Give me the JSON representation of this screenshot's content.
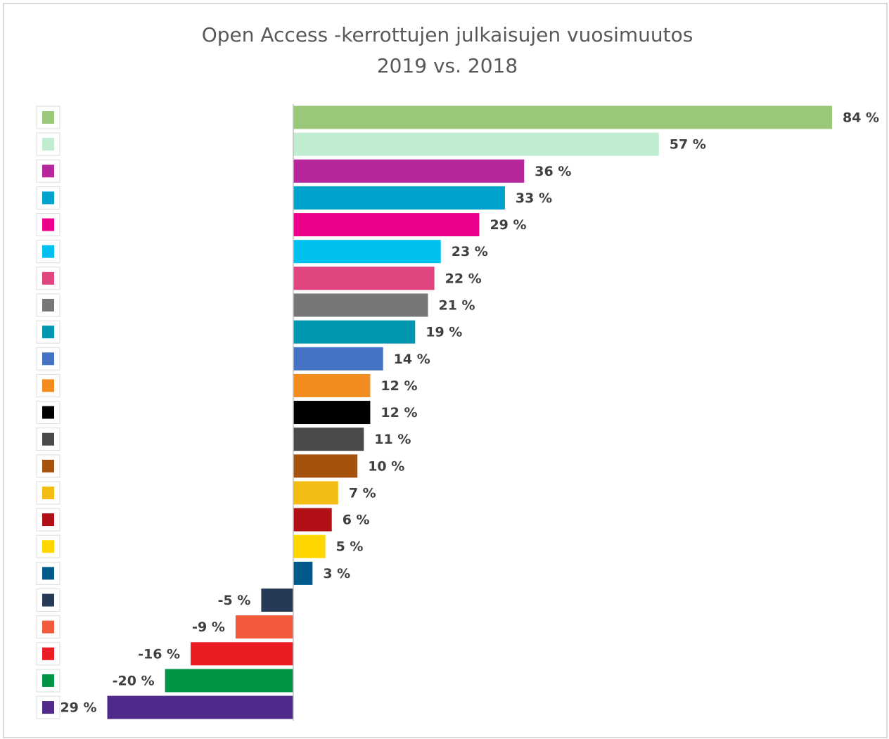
{
  "chart_data": {
    "type": "barh",
    "title": [
      "Open Access -kerrottujen julkaisujen vuosimuutos",
      "2019 vs. 2018"
    ],
    "categories": [
      null,
      null,
      null,
      null,
      null,
      null,
      null,
      null,
      null,
      null,
      null,
      null,
      null,
      null,
      null,
      null,
      null,
      null,
      null,
      null,
      null,
      null,
      null
    ],
    "values": [
      84,
      57,
      36,
      33,
      29,
      23,
      22,
      21,
      19,
      14,
      12,
      12,
      11,
      10,
      7,
      6,
      5,
      3,
      -5,
      -9,
      -16,
      -20,
      -29
    ],
    "value_labels": [
      "84 %",
      "57 %",
      "36 %",
      "33 %",
      "29 %",
      "23 %",
      "22 %",
      "21 %",
      "19 %",
      "14 %",
      "12 %",
      "12 %",
      "11 %",
      "10 %",
      "7 %",
      "6 %",
      "5 %",
      "3 %",
      "-5 %",
      "-9 %",
      "-16 %",
      "-20 %",
      "-29 %"
    ],
    "colors": [
      "#9bc97c",
      "#c0ecd0",
      "#b5279a",
      "#00a3cc",
      "#ec008c",
      "#00c0f0",
      "#e0457f",
      "#777777",
      "#0097b0",
      "#4472c4",
      "#f28c1f",
      "#000000",
      "#4a4a4a",
      "#a5520f",
      "#f2bc13",
      "#b11116",
      "#ffd600",
      "#005a8c",
      "#263a58",
      "#f15a3a",
      "#ec1c24",
      "#009444",
      "#4f2a8a"
    ]
  }
}
